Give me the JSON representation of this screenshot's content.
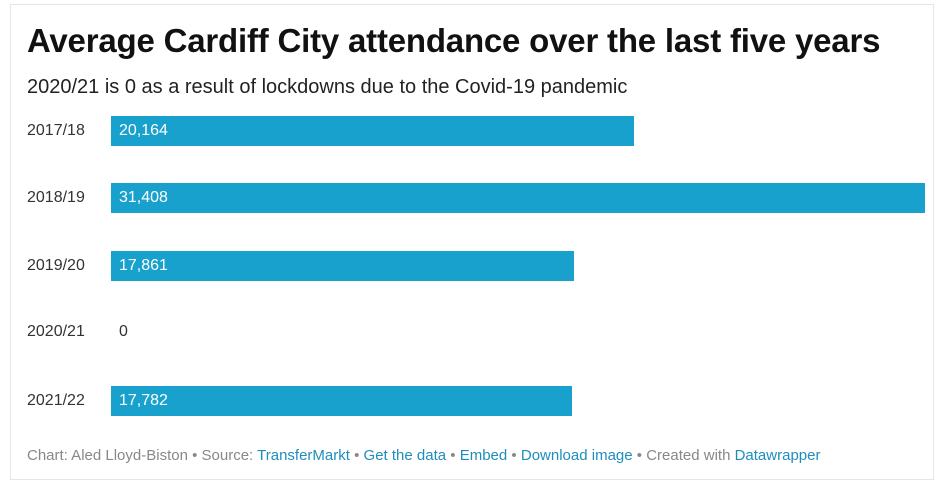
{
  "title": "Average Cardiff City attendance over the last five years",
  "subtitle": "2020/21 is 0 as a result of lockdowns due to the Covid-19 pandemic",
  "chart_data": {
    "type": "bar",
    "orientation": "horizontal",
    "categories": [
      "2017/18",
      "2018/19",
      "2019/20",
      "2020/21",
      "2021/22"
    ],
    "values": [
      20164,
      31408,
      17861,
      0,
      17782
    ],
    "value_labels": [
      "20,164",
      "31,408",
      "17,861",
      "0",
      "17,782"
    ],
    "bar_color": "#18a1cd",
    "xlim": [
      0,
      31408
    ],
    "grid": false,
    "legend": "none"
  },
  "footer": {
    "chart_credit": "Chart: Aled Lloyd-Biston",
    "source_prefix": "Source:",
    "source_link": "TransferMarkt",
    "get_data": "Get the data",
    "embed": "Embed",
    "download": "Download image",
    "created_with": "Created with",
    "datawrapper": "Datawrapper",
    "separator": "•"
  }
}
